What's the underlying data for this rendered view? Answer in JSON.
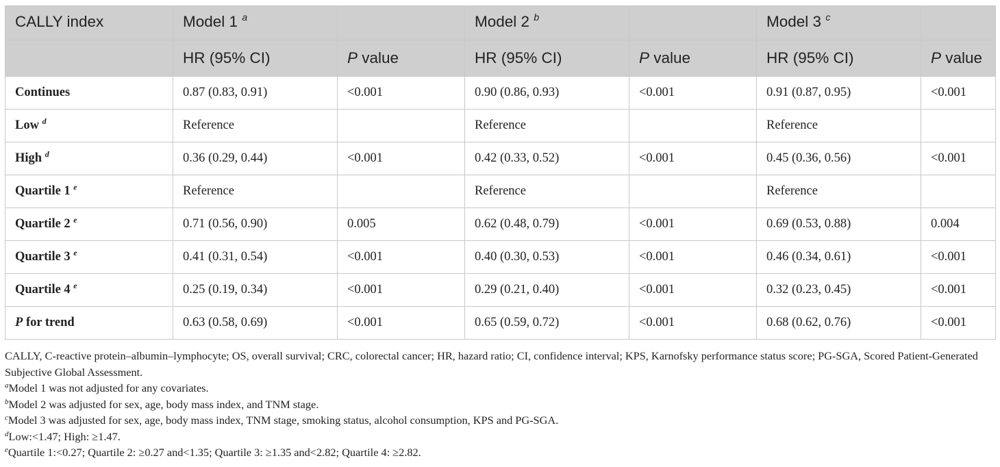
{
  "table": {
    "header_row1": {
      "label_col": "CALLY index",
      "groups": [
        {
          "title": "Model 1",
          "sup": "a"
        },
        {
          "title": "Model 2",
          "sup": "b"
        },
        {
          "title": "Model 3",
          "sup": "c"
        }
      ]
    },
    "header_row2": {
      "hr_label": "HR (95% CI)",
      "p_letter": "P",
      "p_rest": " value"
    },
    "rows": [
      {
        "label": "Continues",
        "sup": "",
        "label_prefix": "",
        "cells": [
          "0.87 (0.83, 0.91)",
          "<0.001",
          "0.90 (0.86, 0.93)",
          "<0.001",
          "0.91 (0.87, 0.95)",
          "<0.001"
        ]
      },
      {
        "label": "Low",
        "sup": "d",
        "label_prefix": "",
        "cells": [
          "Reference",
          "",
          "Reference",
          "",
          "Reference",
          ""
        ]
      },
      {
        "label": "High",
        "sup": "d",
        "label_prefix": "",
        "cells": [
          "0.36 (0.29, 0.44)",
          "<0.001",
          "0.42 (0.33, 0.52)",
          "<0.001",
          "0.45 (0.36, 0.56)",
          "<0.001"
        ]
      },
      {
        "label": "Quartile 1",
        "sup": "e",
        "label_prefix": "",
        "cells": [
          "Reference",
          "",
          "Reference",
          "",
          "Reference",
          ""
        ]
      },
      {
        "label": "Quartile 2",
        "sup": "e",
        "label_prefix": "",
        "cells": [
          "0.71 (0.56, 0.90)",
          "0.005",
          "0.62 (0.48, 0.79)",
          "<0.001",
          "0.69 (0.53, 0.88)",
          "0.004"
        ]
      },
      {
        "label": "Quartile 3",
        "sup": "e",
        "label_prefix": "",
        "cells": [
          "0.41 (0.31, 0.54)",
          "<0.001",
          "0.40 (0.30, 0.53)",
          "<0.001",
          "0.46 (0.34, 0.61)",
          "<0.001"
        ]
      },
      {
        "label": "Quartile 4",
        "sup": "e",
        "label_prefix": "",
        "cells": [
          "0.25 (0.19, 0.34)",
          "<0.001",
          "0.29 (0.21, 0.40)",
          "<0.001",
          "0.32 (0.23, 0.45)",
          "<0.001"
        ]
      },
      {
        "label": " for trend",
        "sup": "",
        "label_prefix": "P",
        "cells": [
          "0.63 (0.58, 0.69)",
          "<0.001",
          "0.65 (0.59, 0.72)",
          "<0.001",
          "0.68 (0.62, 0.76)",
          "<0.001"
        ]
      }
    ]
  },
  "notes": {
    "abbreviations": "CALLY, C-reactive protein–albumin–lymphocyte; OS, overall survival; CRC, colorectal cancer; HR, hazard ratio; CI, confidence interval; KPS, Karnofsky performance status score; PG-SGA, Scored Patient-Generated Subjective Global Assessment.",
    "footnotes": [
      {
        "mark": "a",
        "text": "Model 1 was not adjusted for any covariates."
      },
      {
        "mark": "b",
        "text": "Model 2 was adjusted for sex, age, body mass index, and TNM stage."
      },
      {
        "mark": "c",
        "text": "Model 3 was adjusted for sex, age, body mass index, TNM stage, smoking status, alcohol consumption, KPS and PG-SGA."
      },
      {
        "mark": "d",
        "text": "Low:<1.47; High: ≥1.47."
      },
      {
        "mark": "e",
        "text": "Quartile 1:<0.27; Quartile 2: ≥0.27 and<1.35; Quartile 3: ≥1.35 and<2.82; Quartile 4: ≥2.82."
      }
    ]
  },
  "colors": {
    "header_bg": "#cfcfcf",
    "border": "#c8c8c8",
    "text": "#222222"
  }
}
